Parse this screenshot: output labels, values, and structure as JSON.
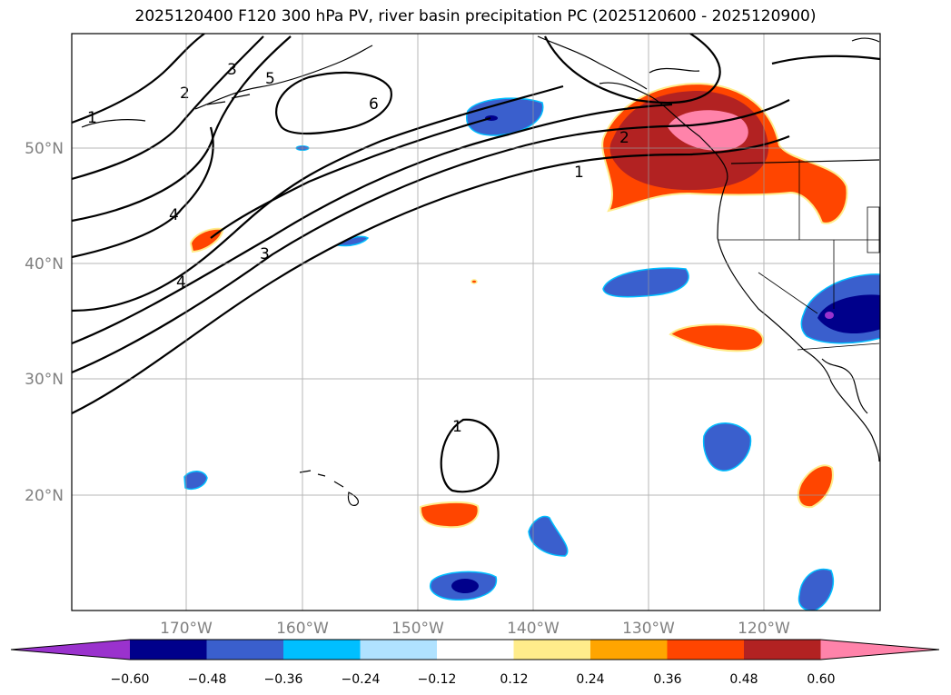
{
  "title": "2025120400 F120 300 hPa PV, river basin precipitation PC (2025120600 - 2025120900)",
  "map": {
    "lon_range": [
      -180,
      -110
    ],
    "lat_range": [
      10,
      60
    ],
    "lon_ticks": [
      {
        "value": -170,
        "label": "170°W"
      },
      {
        "value": -160,
        "label": "160°W"
      },
      {
        "value": -150,
        "label": "150°W"
      },
      {
        "value": -140,
        "label": "140°W"
      },
      {
        "value": -130,
        "label": "130°W"
      },
      {
        "value": -120,
        "label": "120°W"
      }
    ],
    "lat_ticks": [
      {
        "value": 50,
        "label": "50°N"
      },
      {
        "value": 40,
        "label": "40°N"
      },
      {
        "value": 30,
        "label": "30°N"
      },
      {
        "value": 20,
        "label": "20°N"
      }
    ],
    "gridlines": true,
    "pv_contour_labels": [
      "1",
      "2",
      "3",
      "4",
      "5",
      "6",
      "1",
      "2",
      "3",
      "4",
      "1"
    ]
  },
  "colorbar": {
    "ticks": [
      "−0.60",
      "−0.48",
      "−0.36",
      "−0.24",
      "−0.12",
      "0.12",
      "0.24",
      "0.36",
      "0.48",
      "0.60"
    ],
    "colors": [
      "#9a32cd",
      "#00008b",
      "#3a5fcd",
      "#00bfff",
      "#b0e2ff",
      "#ffffff",
      "#ffec8b",
      "#ffa500",
      "#ff4500",
      "#b22222",
      "#ff83aa"
    ]
  }
}
